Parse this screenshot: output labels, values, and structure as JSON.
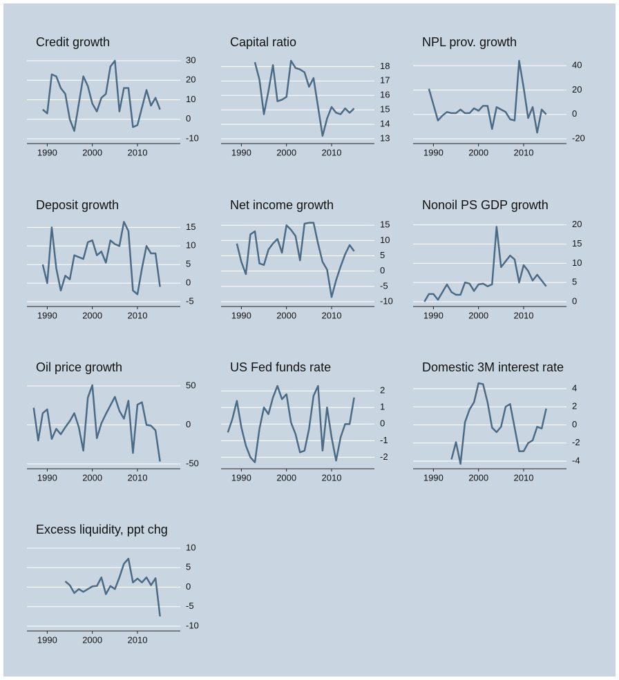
{
  "chart_data": [
    {
      "type": "line",
      "title": "Credit growth",
      "color": "#4a6a85",
      "grid": true,
      "x": [
        1989,
        1990,
        1991,
        1992,
        1993,
        1994,
        1995,
        1996,
        1997,
        1998,
        1999,
        2000,
        2001,
        2002,
        2003,
        2004,
        2005,
        2006,
        2007,
        2008,
        2009,
        2010,
        2011,
        2012,
        2013,
        2014,
        2015
      ],
      "values": [
        5,
        3,
        23,
        22,
        16,
        13,
        0,
        -6,
        8,
        22,
        17,
        8,
        4,
        11,
        13,
        27,
        30,
        4,
        16,
        16,
        -4,
        -3,
        6,
        15,
        7,
        11,
        5
      ],
      "xlim": [
        1985.5,
        2019.5
      ],
      "xticks": [
        1990,
        2000,
        2010
      ],
      "ylim": [
        -10,
        30
      ],
      "yticks": [
        -10,
        0,
        10,
        20,
        30
      ]
    },
    {
      "type": "line",
      "title": "Capital ratio",
      "color": "#4a6a85",
      "grid": true,
      "x": [
        1993,
        1994,
        1995,
        1996,
        1997,
        1998,
        1999,
        2000,
        2001,
        2002,
        2003,
        2004,
        2005,
        2006,
        2007,
        2008,
        2009,
        2010,
        2011,
        2012,
        2013,
        2014,
        2015
      ],
      "values": [
        18.3,
        17.1,
        14.7,
        16.3,
        18.1,
        15.6,
        15.7,
        15.9,
        18.4,
        17.9,
        17.8,
        17.6,
        16.6,
        17.2,
        15.2,
        13.2,
        14.4,
        15.2,
        14.8,
        14.7,
        15.1,
        14.8,
        15.1
      ],
      "xlim": [
        1985.5,
        2019.5
      ],
      "xticks": [
        1990,
        2000,
        2010
      ],
      "ylim": [
        13,
        18.4
      ],
      "yticks": [
        13,
        14,
        15,
        16,
        17,
        18
      ]
    },
    {
      "type": "line",
      "title": "NPL prov. growth",
      "color": "#4a6a85",
      "grid": true,
      "x": [
        1989,
        1990,
        1991,
        1992,
        1993,
        1994,
        1995,
        1996,
        1997,
        1998,
        1999,
        2000,
        2001,
        2002,
        2003,
        2004,
        2005,
        2006,
        2007,
        2008,
        2009,
        2010,
        2011,
        2012,
        2013,
        2014,
        2015
      ],
      "values": [
        21,
        8,
        -5,
        -1,
        2,
        1,
        1,
        4,
        1,
        1,
        5,
        3,
        7,
        7,
        -12,
        6,
        4,
        2,
        -4,
        -5,
        44,
        22,
        -3,
        6,
        -15,
        4,
        0
      ],
      "xlim": [
        1985.5,
        2019.5
      ],
      "xticks": [
        1990,
        2000,
        2010
      ],
      "ylim": [
        -20,
        44
      ],
      "yticks": [
        -20,
        0,
        20,
        40
      ]
    },
    {
      "type": "line",
      "title": "Deposit growth",
      "color": "#4a6a85",
      "grid": true,
      "x": [
        1989,
        1990,
        1991,
        1992,
        1993,
        1994,
        1995,
        1996,
        1997,
        1998,
        1999,
        2000,
        2001,
        2002,
        2003,
        2004,
        2005,
        2006,
        2007,
        2008,
        2009,
        2010,
        2011,
        2012,
        2013,
        2014,
        2015
      ],
      "values": [
        5,
        0,
        15,
        4,
        -2,
        2,
        1,
        7.5,
        7,
        6.5,
        11,
        11.5,
        7.5,
        8.5,
        5.5,
        11.5,
        10.5,
        10,
        16.5,
        14,
        -2,
        -3,
        4,
        10,
        8,
        8,
        -1
      ],
      "xlim": [
        1985.5,
        2019.5
      ],
      "xticks": [
        1990,
        2000,
        2010
      ],
      "ylim": [
        -5,
        16
      ],
      "yticks": [
        -5,
        0,
        5,
        10,
        15
      ]
    },
    {
      "type": "line",
      "title": "Net income growth",
      "color": "#4a6a85",
      "grid": true,
      "x": [
        1989,
        1990,
        1991,
        1992,
        1993,
        1994,
        1995,
        1996,
        1997,
        1998,
        1999,
        2000,
        2001,
        2002,
        2003,
        2004,
        2005,
        2006,
        2007,
        2008,
        2009,
        2010,
        2011,
        2012,
        2013,
        2014,
        2015
      ],
      "values": [
        9,
        3,
        -1,
        12,
        13,
        2.5,
        2,
        7,
        9,
        10.5,
        6,
        15,
        13.5,
        11.5,
        3.5,
        15.5,
        15.8,
        15.8,
        9,
        3,
        0.5,
        -8.5,
        -3,
        1.5,
        5.5,
        8.5,
        6.5
      ],
      "xlim": [
        1985.5,
        2019.5
      ],
      "xticks": [
        1990,
        2000,
        2010
      ],
      "ylim": [
        -10,
        15.5
      ],
      "yticks": [
        -10,
        -5,
        0,
        5,
        10,
        15
      ]
    },
    {
      "type": "line",
      "title": "Nonoil PS GDP growth",
      "color": "#4a6a85",
      "grid": true,
      "x": [
        1988,
        1989,
        1990,
        1991,
        1992,
        1993,
        1994,
        1995,
        1996,
        1997,
        1998,
        1999,
        2000,
        2001,
        2002,
        2003,
        2004,
        2005,
        2006,
        2007,
        2008,
        2009,
        2010,
        2011,
        2012,
        2013,
        2014,
        2015
      ],
      "values": [
        0,
        2,
        2,
        0.5,
        2.5,
        4.5,
        2.5,
        1.8,
        1.8,
        5,
        4.7,
        2.8,
        4.5,
        4.7,
        4,
        4.5,
        19.5,
        9,
        10.5,
        12,
        11,
        5,
        9.5,
        8,
        5.5,
        7,
        5.5,
        4
      ],
      "xlim": [
        1985.5,
        2019.5
      ],
      "xticks": [
        1990,
        2000,
        2010
      ],
      "ylim": [
        0,
        20.3
      ],
      "yticks": [
        0,
        5,
        10,
        15,
        20
      ]
    },
    {
      "type": "line",
      "title": "Oil price growth",
      "color": "#4a6a85",
      "grid": true,
      "x": [
        1987,
        1988,
        1989,
        1990,
        1991,
        1992,
        1993,
        1994,
        1995,
        1996,
        1997,
        1998,
        1999,
        2000,
        2001,
        2002,
        2003,
        2004,
        2005,
        2006,
        2007,
        2008,
        2009,
        2010,
        2011,
        2012,
        2013,
        2014,
        2015
      ],
      "values": [
        22,
        -20,
        15,
        20,
        -18,
        -5,
        -12,
        -3,
        5,
        15,
        -3,
        -33,
        35,
        51,
        -17,
        2,
        14,
        25,
        36,
        18,
        8,
        31,
        -36,
        26,
        29,
        0,
        -1,
        -7,
        -47
      ],
      "xlim": [
        1985.5,
        2019.5
      ],
      "xticks": [
        1990,
        2000,
        2010
      ],
      "ylim": [
        -50,
        50
      ],
      "yticks": [
        -50,
        0,
        50
      ]
    },
    {
      "type": "line",
      "title": "US Fed funds rate",
      "color": "#4a6a85",
      "grid": true,
      "x": [
        1987,
        1988,
        1989,
        1990,
        1991,
        1992,
        1993,
        1994,
        1995,
        1996,
        1997,
        1998,
        1999,
        2000,
        2001,
        2002,
        2003,
        2004,
        2005,
        2006,
        2007,
        2008,
        2009,
        2010,
        2011,
        2012,
        2013,
        2014,
        2015
      ],
      "values": [
        -0.5,
        0.3,
        1.4,
        -0.2,
        -1.3,
        -2,
        -2.3,
        -0.3,
        1,
        0.6,
        1.6,
        2.3,
        1.5,
        1.8,
        0.1,
        -0.6,
        -1.7,
        -1.6,
        -0.3,
        1.7,
        2.3,
        -1.6,
        1,
        -0.8,
        -2.2,
        -0.8,
        0,
        0,
        1.6
      ],
      "xlim": [
        1985.5,
        2019.5
      ],
      "xticks": [
        1990,
        2000,
        2010
      ],
      "ylim": [
        -2.4,
        2.3
      ],
      "yticks": [
        -2,
        -1,
        0,
        1,
        2
      ]
    },
    {
      "type": "line",
      "title": "Domestic 3M interest rate",
      "color": "#4a6a85",
      "grid": true,
      "x": [
        1994,
        1995,
        1996,
        1997,
        1998,
        1999,
        2000,
        2001,
        2002,
        2003,
        2004,
        2005,
        2006,
        2007,
        2008,
        2009,
        2010,
        2011,
        2012,
        2013,
        2014,
        2015
      ],
      "values": [
        -3.8,
        -1.9,
        -4.3,
        0.3,
        1.7,
        2.5,
        4.6,
        4.5,
        2.5,
        -0.3,
        -0.8,
        -0.2,
        2,
        2.3,
        -0.3,
        -2.9,
        -2.9,
        -2,
        -1.7,
        -0.2,
        -0.4,
        1.8
      ],
      "xlim": [
        1985.5,
        2019.5
      ],
      "xticks": [
        1990,
        2000,
        2010
      ],
      "ylim": [
        -4.3,
        4.3
      ],
      "yticks": [
        -4,
        -2,
        0,
        2,
        4
      ]
    },
    {
      "type": "line",
      "title": "Excess liquidity, ppt chg",
      "color": "#4a6a85",
      "grid": true,
      "x": [
        1994,
        1995,
        1996,
        1997,
        1998,
        1999,
        2000,
        2001,
        2002,
        2003,
        2004,
        2005,
        2006,
        2007,
        2008,
        2009,
        2010,
        2011,
        2012,
        2013,
        2014,
        2015
      ],
      "values": [
        1.5,
        0.5,
        -1.5,
        -0.5,
        -1.2,
        -0.5,
        0.2,
        0.3,
        2.5,
        -1.8,
        0.3,
        -0.5,
        2.5,
        6,
        7.3,
        1.2,
        2.2,
        1.2,
        2.5,
        0.5,
        2.3,
        -7.5
      ],
      "xlim": [
        1985.5,
        2019.5
      ],
      "xticks": [
        1990,
        2000,
        2010
      ],
      "ylim": [
        -10,
        10
      ],
      "yticks": [
        -10,
        -5,
        0,
        5,
        10
      ]
    }
  ]
}
